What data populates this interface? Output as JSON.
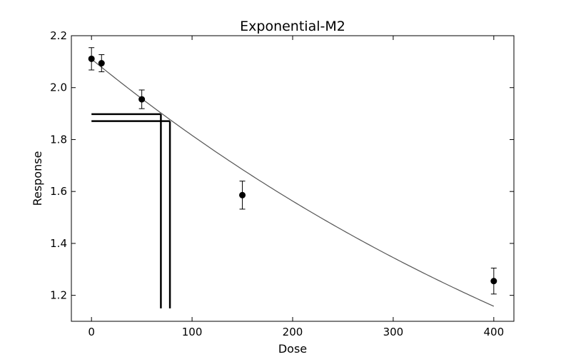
{
  "chart_data": {
    "type": "scatter",
    "title": "Exponential-M2",
    "xlabel": "Dose",
    "ylabel": "Response",
    "xlim": [
      -20,
      420
    ],
    "ylim": [
      1.1,
      2.2
    ],
    "xticks": [
      0,
      100,
      200,
      300,
      400
    ],
    "yticks": [
      1.2,
      1.4,
      1.6,
      1.8,
      2.0,
      2.2
    ],
    "xtick_labels": [
      "0",
      "100",
      "200",
      "300",
      "400"
    ],
    "ytick_labels": [
      "1.2",
      "1.4",
      "1.6",
      "1.8",
      "2.0",
      "2.2"
    ],
    "grid": false,
    "points": [
      {
        "x": 0,
        "y": 2.111,
        "err": 0.043
      },
      {
        "x": 10,
        "y": 2.094,
        "err": 0.033
      },
      {
        "x": 50,
        "y": 1.955,
        "err": 0.036
      },
      {
        "x": 150,
        "y": 1.586,
        "err": 0.054
      },
      {
        "x": 400,
        "y": 1.255,
        "err": 0.05
      }
    ],
    "fit_curve": {
      "model": "exponential",
      "a": 2.11,
      "b": 0.0015,
      "x_range": [
        0,
        400
      ],
      "color": "#555555"
    },
    "reference_lines": [
      {
        "x": 69,
        "y": 1.898
      },
      {
        "x": 78,
        "y": 1.871
      }
    ],
    "marker_color": "#000000"
  }
}
